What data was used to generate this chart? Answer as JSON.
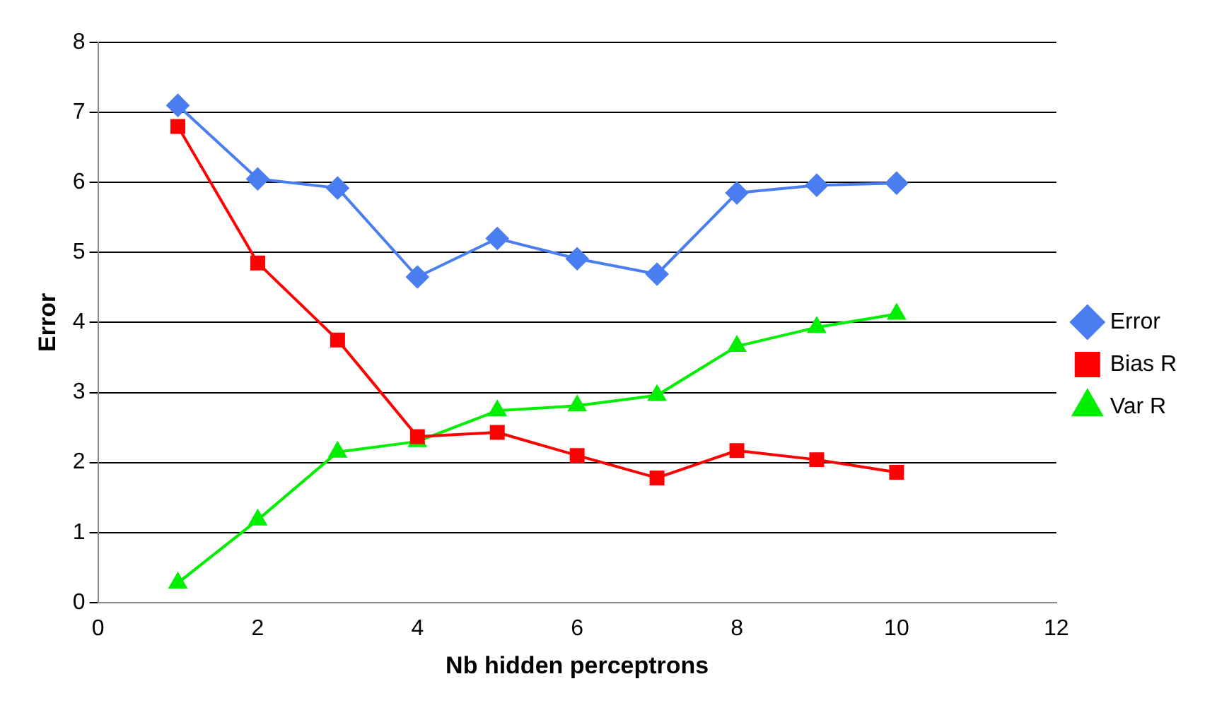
{
  "chart_data": {
    "type": "line",
    "xlabel": "Nb hidden perceptrons",
    "ylabel": "Error",
    "x": [
      1,
      2,
      3,
      4,
      5,
      6,
      7,
      8,
      9,
      10
    ],
    "series": [
      {
        "name": "Error",
        "color": "#4a7ef0",
        "marker": "diamond",
        "values": [
          7.1,
          6.05,
          5.92,
          4.65,
          5.2,
          4.91,
          4.69,
          5.85,
          5.96,
          5.99
        ]
      },
      {
        "name": "Bias R",
        "color": "#ff0000",
        "marker": "square",
        "values": [
          6.8,
          4.85,
          3.75,
          2.37,
          2.43,
          2.1,
          1.78,
          2.17,
          2.04,
          1.86
        ]
      },
      {
        "name": "Var R",
        "color": "#00ee00",
        "marker": "triangle",
        "values": [
          0.28,
          1.18,
          2.15,
          2.3,
          2.74,
          2.81,
          2.96,
          3.66,
          3.93,
          4.12
        ]
      }
    ],
    "xlim": [
      0,
      12
    ],
    "xticks": [
      0,
      2,
      4,
      6,
      8,
      10,
      12
    ],
    "ylim": [
      0,
      8
    ],
    "yticks": [
      0,
      1,
      2,
      3,
      4,
      5,
      6,
      7,
      8
    ],
    "grid": "y",
    "legend": "right",
    "line_style": "solid"
  }
}
